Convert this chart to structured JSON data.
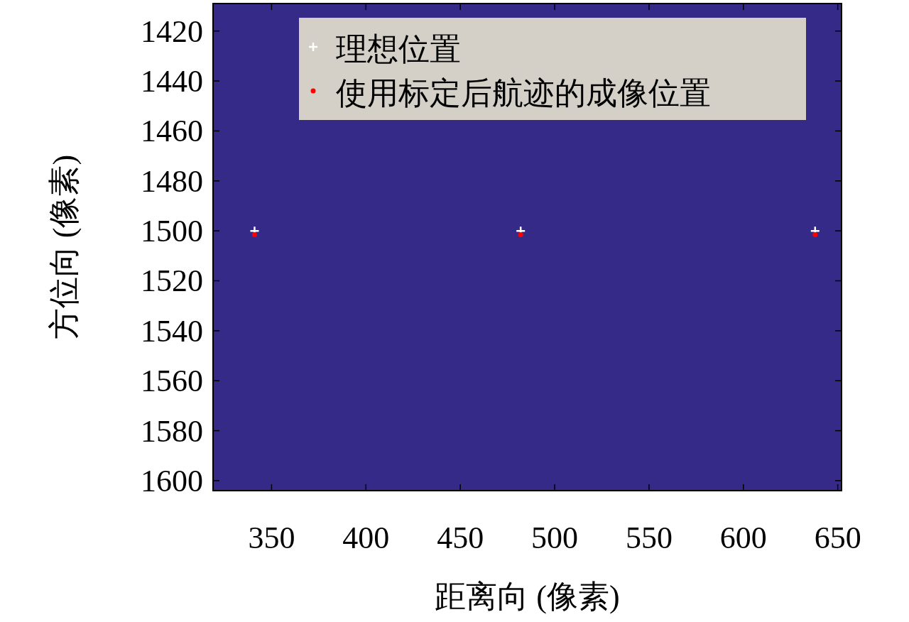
{
  "chart_data": {
    "type": "scatter",
    "xlabel": "距离向 (像素)",
    "ylabel": "方位向 (像素)",
    "xlim": [
      319,
      652
    ],
    "xticks": [
      350,
      400,
      450,
      500,
      550,
      600,
      650
    ],
    "ylim": [
      1604,
      1409
    ],
    "yticks": [
      1420,
      1440,
      1460,
      1480,
      1500,
      1520,
      1540,
      1560,
      1580,
      1600
    ],
    "grid": false,
    "legend": "top right",
    "series": [
      {
        "name": "理想位置",
        "color": "#ffffff",
        "marker": "cross",
        "x": [
          341,
          482,
          638
        ],
        "values": [
          1500,
          1500,
          1500
        ]
      },
      {
        "name": "使用标定后航迹的成像位置",
        "color": "#ff0000",
        "marker": "circle",
        "x": [
          341,
          482,
          638
        ],
        "values": [
          1501.5,
          1501.5,
          1501.5
        ]
      }
    ]
  }
}
